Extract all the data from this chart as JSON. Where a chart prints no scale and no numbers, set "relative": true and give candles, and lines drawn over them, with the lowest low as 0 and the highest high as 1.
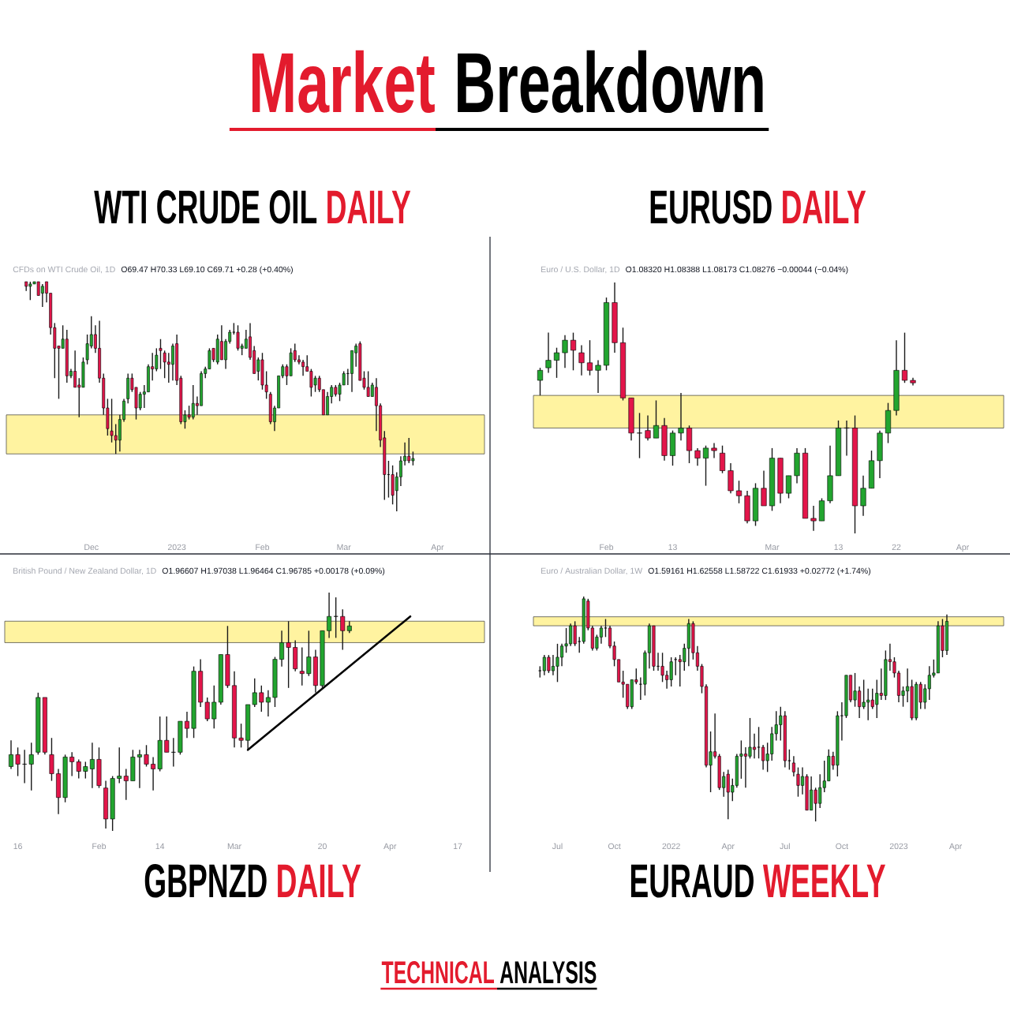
{
  "chart_data": [
    {
      "type": "other",
      "title": "Market",
      "subtitle": "Breakdown",
      "annotations": [
        "TECHNICAL",
        "ANALYSIS"
      ]
    },
    {
      "type": "candlestick",
      "title": "WTI CRUDE OIL",
      "subtitle": "DAILY",
      "annotations": [
        "CFDs on WTI Crude Oil, 1D",
        "O69.47 H70.33 L69.10 C69.71 +0.28 (+0.40%)"
      ],
      "relative": true,
      "categories": [
        null,
        null,
        null,
        null,
        null,
        null,
        null,
        null,
        null,
        null,
        null,
        null,
        null,
        null,
        null,
        null,
        "Dec",
        null,
        null,
        null,
        null,
        null,
        null,
        null,
        null,
        null,
        null,
        null,
        null,
        null,
        null,
        null,
        null,
        null,
        null,
        null,
        null,
        "2023",
        null,
        null,
        null,
        null,
        null,
        null,
        null,
        null,
        null,
        null,
        null,
        null,
        null,
        null,
        null,
        null,
        null,
        null,
        null,
        null,
        "Feb",
        null,
        null,
        null,
        null,
        null,
        null,
        null,
        null,
        null,
        null,
        null,
        null,
        null,
        null,
        null,
        null,
        null,
        null,
        null,
        "Mar",
        null,
        null,
        null,
        null,
        null,
        null,
        null,
        null,
        null,
        null,
        null,
        null,
        null,
        null,
        null,
        null,
        null,
        null,
        null,
        null,
        null,
        null,
        "Apr"
      ],
      "ohlc": [
        [
          1.0,
          1.0,
          0.96,
          0.98
        ],
        [
          0.98,
          1.0,
          0.92,
          0.99
        ],
        [
          0.99,
          1.0,
          0.99,
          1.0
        ],
        [
          1.0,
          1.0,
          0.94,
          0.94
        ],
        [
          0.95,
          0.99,
          0.89,
          0.98
        ],
        [
          1.0,
          1.0,
          0.91,
          0.95
        ],
        [
          0.95,
          0.95,
          0.77,
          0.8
        ],
        [
          0.8,
          0.82,
          0.58,
          0.71
        ],
        [
          0.72,
          0.72,
          0.49,
          0.71
        ],
        [
          0.71,
          0.81,
          0.71,
          0.75
        ],
        [
          0.75,
          0.79,
          0.56,
          0.59
        ],
        [
          0.59,
          0.62,
          0.58,
          0.61
        ],
        [
          0.61,
          0.7,
          0.54,
          0.54
        ],
        [
          0.55,
          0.58,
          0.41,
          0.54
        ],
        [
          0.54,
          0.67,
          0.54,
          0.65
        ],
        [
          0.66,
          0.77,
          0.64,
          0.73
        ],
        [
          0.72,
          0.85,
          0.71,
          0.77
        ],
        [
          0.77,
          0.81,
          0.69,
          0.71
        ],
        [
          0.71,
          0.83,
          0.56,
          0.58
        ],
        [
          0.58,
          0.6,
          0.42,
          0.45
        ],
        [
          0.45,
          0.49,
          0.33,
          0.36
        ],
        [
          0.35,
          0.49,
          0.3,
          0.33
        ],
        [
          0.33,
          0.38,
          0.25,
          0.31
        ],
        [
          0.31,
          0.42,
          0.26,
          0.4
        ],
        [
          0.4,
          0.49,
          0.39,
          0.48
        ],
        [
          0.49,
          0.6,
          0.47,
          0.58
        ],
        [
          0.58,
          0.6,
          0.52,
          0.53
        ],
        [
          0.54,
          0.54,
          0.4,
          0.45
        ],
        [
          0.45,
          0.52,
          0.44,
          0.51
        ],
        [
          0.51,
          0.55,
          0.45,
          0.52
        ],
        [
          0.52,
          0.64,
          0.52,
          0.63
        ],
        [
          0.63,
          0.69,
          0.57,
          0.62
        ],
        [
          0.62,
          0.71,
          0.61,
          0.68
        ],
        [
          0.71,
          0.75,
          0.62,
          0.7
        ],
        [
          0.69,
          0.7,
          0.58,
          0.65
        ],
        [
          0.65,
          0.69,
          0.56,
          0.64
        ],
        [
          0.64,
          0.73,
          0.57,
          0.72
        ],
        [
          0.73,
          0.77,
          0.55,
          0.57
        ],
        [
          0.58,
          0.59,
          0.38,
          0.39
        ],
        [
          0.39,
          0.44,
          0.36,
          0.42
        ],
        [
          0.42,
          0.46,
          0.4,
          0.41
        ],
        [
          0.41,
          0.55,
          0.4,
          0.47
        ],
        [
          0.47,
          0.5,
          0.42,
          0.46
        ],
        [
          0.46,
          0.61,
          0.46,
          0.6
        ],
        [
          0.6,
          0.63,
          0.58,
          0.62
        ],
        [
          0.62,
          0.71,
          0.62,
          0.7
        ],
        [
          0.71,
          0.71,
          0.65,
          0.66
        ],
        [
          0.65,
          0.77,
          0.64,
          0.75
        ],
        [
          0.74,
          0.81,
          0.66,
          0.66
        ],
        [
          0.66,
          0.75,
          0.62,
          0.74
        ],
        [
          0.74,
          0.79,
          0.73,
          0.78
        ],
        [
          0.78,
          0.82,
          0.77,
          0.78
        ],
        [
          0.78,
          0.81,
          0.7,
          0.71
        ],
        [
          0.71,
          0.73,
          0.68,
          0.72
        ],
        [
          0.71,
          0.79,
          0.71,
          0.75
        ],
        [
          0.76,
          0.82,
          0.66,
          0.67
        ],
        [
          0.7,
          0.72,
          0.6,
          0.6
        ],
        [
          0.61,
          0.67,
          0.57,
          0.66
        ],
        [
          0.66,
          0.69,
          0.53,
          0.55
        ],
        [
          0.55,
          0.61,
          0.49,
          0.52
        ],
        [
          0.51,
          0.52,
          0.38,
          0.39
        ],
        [
          0.39,
          0.46,
          0.35,
          0.45
        ],
        [
          0.45,
          0.59,
          0.45,
          0.59
        ],
        [
          0.59,
          0.64,
          0.58,
          0.63
        ],
        [
          0.63,
          0.64,
          0.55,
          0.59
        ],
        [
          0.59,
          0.71,
          0.59,
          0.69
        ],
        [
          0.7,
          0.73,
          0.65,
          0.66
        ],
        [
          0.66,
          0.68,
          0.64,
          0.65
        ],
        [
          0.65,
          0.66,
          0.59,
          0.63
        ],
        [
          0.63,
          0.68,
          0.61,
          0.61
        ],
        [
          0.61,
          0.62,
          0.5,
          0.54
        ],
        [
          0.55,
          0.59,
          0.52,
          0.58
        ],
        [
          0.58,
          0.59,
          0.52,
          0.53
        ],
        [
          0.53,
          0.53,
          0.42,
          0.42
        ],
        [
          0.42,
          0.52,
          0.42,
          0.5
        ],
        [
          0.5,
          0.55,
          0.47,
          0.54
        ],
        [
          0.54,
          0.55,
          0.5,
          0.51
        ],
        [
          0.51,
          0.56,
          0.48,
          0.55
        ],
        [
          0.55,
          0.61,
          0.55,
          0.6
        ],
        [
          0.6,
          0.62,
          0.55,
          0.6
        ],
        [
          0.6,
          0.7,
          0.52,
          0.7
        ],
        [
          0.69,
          0.73,
          0.63,
          0.72
        ],
        [
          0.73,
          0.74,
          0.57,
          0.57
        ],
        [
          0.58,
          0.61,
          0.53,
          0.54
        ],
        [
          0.54,
          0.61,
          0.5,
          0.5
        ],
        [
          0.5,
          0.56,
          0.5,
          0.55
        ],
        [
          0.54,
          0.58,
          0.35,
          0.46
        ],
        [
          0.46,
          0.47,
          0.28,
          0.31
        ],
        [
          0.32,
          0.35,
          0.05,
          0.16
        ],
        [
          0.16,
          0.22,
          0.06,
          0.16
        ],
        [
          0.16,
          0.2,
          0.03,
          0.07
        ],
        [
          0.09,
          0.17,
          0.0,
          0.15
        ],
        [
          0.15,
          0.24,
          0.11,
          0.22
        ],
        [
          0.22,
          0.3,
          0.2,
          0.24
        ],
        [
          0.24,
          0.32,
          0.21,
          0.22
        ],
        [
          0.22,
          0.26,
          0.2,
          0.23
        ],
        null,
        null,
        null,
        null,
        null,
        null
      ],
      "colors": [
        "#e3154a",
        "#22a52f",
        "#22a52f",
        "#e3154a",
        "#22a52f",
        "#e3154a",
        "#e3154a",
        "#e3154a",
        "#e3154a",
        "#22a52f",
        "#e3154a",
        "#22a52f",
        "#e3154a",
        "#e3154a",
        "#22a52f",
        "#22a52f",
        "#22a52f",
        "#e3154a",
        "#e3154a",
        "#e3154a",
        "#e3154a",
        "#e3154a",
        "#e3154a",
        "#22a52f",
        "#22a52f",
        "#22a52f",
        "#e3154a",
        "#e3154a",
        "#22a52f",
        "#22a52f",
        "#22a52f",
        "#e3154a",
        "#22a52f",
        "#e3154a",
        "#e3154a",
        "#e3154a",
        "#22a52f",
        "#e3154a",
        "#e3154a",
        "#22a52f",
        "#e3154a",
        "#22a52f",
        "#e3154a",
        "#22a52f",
        "#22a52f",
        "#22a52f",
        "#e3154a",
        "#22a52f",
        "#e3154a",
        "#22a52f",
        "#22a52f",
        "#000000",
        "#e3154a",
        "#22a52f",
        "#22a52f",
        "#e3154a",
        "#e3154a",
        "#22a52f",
        "#e3154a",
        "#e3154a",
        "#e3154a",
        "#22a52f",
        "#22a52f",
        "#22a52f",
        "#e3154a",
        "#22a52f",
        "#e3154a",
        "#e3154a",
        "#e3154a",
        "#e3154a",
        "#e3154a",
        "#22a52f",
        "#e3154a",
        "#e3154a",
        "#22a52f",
        "#22a52f",
        "#e3154a",
        "#22a52f",
        "#22a52f",
        "#000000",
        "#22a52f",
        "#22a52f",
        "#e3154a",
        "#e3154a",
        "#e3154a",
        "#22a52f",
        "#e3154a",
        "#e3154a",
        "#e3154a",
        "#000000",
        "#e3154a",
        "#22a52f",
        "#22a52f",
        "#22a52f",
        "#e3154a",
        "#22a52f",
        null,
        null,
        null,
        null,
        null,
        null
      ],
      "bands": [
        {
          "axis": "y",
          "from": 0.25,
          "to": 0.42,
          "color": "#fff3a0"
        }
      ]
    },
    {
      "type": "candlestick",
      "title": "EURUSD",
      "subtitle": "DAILY",
      "annotations": [
        "Euro / U.S. Dollar, 1D",
        "O1.08320 H1.08388 L1.08173 C1.08276 −0.00044 (−0.04%)"
      ],
      "relative": true,
      "categories": [
        null,
        null,
        null,
        null,
        null,
        null,
        null,
        null,
        "Feb",
        null,
        null,
        null,
        null,
        null,
        null,
        null,
        "13",
        null,
        null,
        null,
        null,
        null,
        null,
        null,
        null,
        null,
        null,
        null,
        "Mar",
        null,
        null,
        null,
        null,
        null,
        null,
        null,
        "13",
        null,
        null,
        null,
        null,
        null,
        null,
        "22",
        null,
        null,
        null,
        null,
        null,
        null,
        null,
        "Apr"
      ],
      "ohlc": [
        [
          0.61,
          0.66,
          0.55,
          0.65
        ],
        [
          0.66,
          0.8,
          0.64,
          0.69
        ],
        [
          0.69,
          0.74,
          0.62,
          0.72
        ],
        [
          0.72,
          0.79,
          0.66,
          0.77
        ],
        [
          0.77,
          0.8,
          0.65,
          0.73
        ],
        [
          0.72,
          0.75,
          0.63,
          0.68
        ],
        [
          0.68,
          0.77,
          0.63,
          0.65
        ],
        [
          0.65,
          0.69,
          0.56,
          0.67
        ],
        [
          0.67,
          0.94,
          0.65,
          0.92
        ],
        [
          0.92,
          1.0,
          0.72,
          0.76
        ],
        [
          0.76,
          0.82,
          0.53,
          0.54
        ],
        [
          0.54,
          0.54,
          0.37,
          0.4
        ],
        [
          0.4,
          0.48,
          0.3,
          0.4
        ],
        [
          0.41,
          0.47,
          0.37,
          0.38
        ],
        [
          0.38,
          0.53,
          0.38,
          0.43
        ],
        [
          0.43,
          0.46,
          0.29,
          0.31
        ],
        [
          0.31,
          0.41,
          0.27,
          0.4
        ],
        [
          0.4,
          0.56,
          0.37,
          0.42
        ],
        [
          0.42,
          0.43,
          0.28,
          0.33
        ],
        [
          0.33,
          0.34,
          0.27,
          0.3
        ],
        [
          0.3,
          0.35,
          0.19,
          0.34
        ],
        [
          0.34,
          0.36,
          0.3,
          0.33
        ],
        [
          0.32,
          0.35,
          0.24,
          0.25
        ],
        [
          0.25,
          0.28,
          0.16,
          0.17
        ],
        [
          0.17,
          0.21,
          0.12,
          0.15
        ],
        [
          0.15,
          0.17,
          0.04,
          0.05
        ],
        [
          0.05,
          0.2,
          0.03,
          0.18
        ],
        [
          0.18,
          0.25,
          0.11,
          0.11
        ],
        [
          0.11,
          0.34,
          0.09,
          0.3
        ],
        [
          0.3,
          0.3,
          0.12,
          0.16
        ],
        [
          0.16,
          0.23,
          0.14,
          0.23
        ],
        [
          0.23,
          0.34,
          0.2,
          0.32
        ],
        [
          0.32,
          0.34,
          0.06,
          0.06
        ],
        [
          0.06,
          0.11,
          0.01,
          0.05
        ],
        [
          0.05,
          0.14,
          0.05,
          0.13
        ],
        [
          0.13,
          0.35,
          0.12,
          0.23
        ],
        [
          0.23,
          0.45,
          0.23,
          0.42
        ],
        [
          0.42,
          0.45,
          0.31,
          0.42
        ],
        [
          0.42,
          0.47,
          0.0,
          0.11
        ],
        [
          0.11,
          0.23,
          0.07,
          0.18
        ],
        [
          0.18,
          0.33,
          0.18,
          0.29
        ],
        [
          0.29,
          0.41,
          0.22,
          0.4
        ],
        [
          0.4,
          0.52,
          0.36,
          0.49
        ],
        [
          0.49,
          0.77,
          0.47,
          0.65
        ],
        [
          0.65,
          0.8,
          0.6,
          0.61
        ],
        [
          0.61,
          0.62,
          0.59,
          0.6
        ],
        null,
        null,
        null,
        null,
        null,
        null
      ],
      "colors": [
        "#22a52f",
        "#22a52f",
        "#22a52f",
        "#22a52f",
        "#e3154a",
        "#e3154a",
        "#e3154a",
        "#22a52f",
        "#22a52f",
        "#e3154a",
        "#e3154a",
        "#e3154a",
        "#000000",
        "#e3154a",
        "#22a52f",
        "#e3154a",
        "#22a52f",
        "#22a52f",
        "#e3154a",
        "#e3154a",
        "#22a52f",
        "#e3154a",
        "#e3154a",
        "#e3154a",
        "#e3154a",
        "#e3154a",
        "#22a52f",
        "#e3154a",
        "#22a52f",
        "#e3154a",
        "#22a52f",
        "#22a52f",
        "#e3154a",
        "#e3154a",
        "#22a52f",
        "#22a52f",
        "#22a52f",
        "#000000",
        "#e3154a",
        "#22a52f",
        "#22a52f",
        "#22a52f",
        "#22a52f",
        "#22a52f",
        "#e3154a",
        "#e3154a",
        null,
        null,
        null,
        null,
        null,
        null
      ],
      "bands": [
        {
          "axis": "y",
          "from": 0.42,
          "to": 0.55,
          "color": "#fff3a0"
        }
      ]
    },
    {
      "type": "candlestick",
      "title": "GBPNZD",
      "subtitle": "DAILY",
      "annotations": [
        "British Pound / New Zealand Dollar, 1D",
        "O1.96607 H1.97038 L1.96464 C1.96785 +0.00178 (+0.09%)"
      ],
      "relative": true,
      "categories": [
        null,
        "16",
        null,
        null,
        null,
        null,
        null,
        null,
        null,
        null,
        null,
        null,
        null,
        "Feb",
        null,
        null,
        null,
        null,
        null,
        null,
        null,
        null,
        "14",
        null,
        null,
        null,
        null,
        null,
        null,
        null,
        null,
        null,
        null,
        "Mar",
        null,
        null,
        null,
        null,
        null,
        null,
        null,
        null,
        null,
        null,
        null,
        null,
        "20",
        null,
        null,
        null,
        null,
        null,
        null,
        null,
        null,
        null,
        "Apr",
        null,
        null,
        null,
        null,
        null,
        null,
        null,
        null,
        null,
        "17"
      ],
      "ohlc": [
        [
          0.27,
          0.38,
          0.26,
          0.32
        ],
        [
          0.32,
          0.35,
          0.23,
          0.28
        ],
        [
          0.28,
          0.34,
          0.2,
          0.28
        ],
        [
          0.28,
          0.37,
          0.17,
          0.32
        ],
        [
          0.33,
          0.58,
          0.32,
          0.56
        ],
        [
          0.56,
          0.56,
          0.32,
          0.33
        ],
        [
          0.32,
          0.39,
          0.21,
          0.24
        ],
        [
          0.24,
          0.26,
          0.07,
          0.14
        ],
        [
          0.14,
          0.32,
          0.12,
          0.31
        ],
        [
          0.31,
          0.33,
          0.23,
          0.29
        ],
        [
          0.29,
          0.3,
          0.22,
          0.25
        ],
        [
          0.25,
          0.29,
          0.22,
          0.27
        ],
        [
          0.26,
          0.37,
          0.18,
          0.3
        ],
        [
          0.3,
          0.35,
          0.18,
          0.19
        ],
        [
          0.18,
          0.21,
          0.01,
          0.05
        ],
        [
          0.05,
          0.23,
          0.0,
          0.22
        ],
        [
          0.22,
          0.35,
          0.2,
          0.23
        ],
        [
          0.23,
          0.26,
          0.13,
          0.21
        ],
        [
          0.21,
          0.34,
          0.21,
          0.31
        ],
        [
          0.31,
          0.34,
          0.18,
          0.32
        ],
        [
          0.32,
          0.36,
          0.27,
          0.28
        ],
        [
          0.28,
          0.31,
          0.17,
          0.26
        ],
        [
          0.26,
          0.48,
          0.25,
          0.38
        ],
        [
          0.38,
          0.48,
          0.33,
          0.33
        ],
        [
          0.33,
          0.39,
          0.27,
          0.33
        ],
        [
          0.33,
          0.46,
          0.32,
          0.46
        ],
        [
          0.46,
          0.5,
          0.39,
          0.43
        ],
        [
          0.43,
          0.69,
          0.39,
          0.67
        ],
        [
          0.67,
          0.72,
          0.52,
          0.54
        ],
        [
          0.54,
          0.56,
          0.46,
          0.47
        ],
        [
          0.47,
          0.61,
          0.43,
          0.54
        ],
        [
          0.54,
          0.74,
          0.53,
          0.74
        ],
        [
          0.74,
          0.86,
          0.6,
          0.61
        ],
        [
          0.61,
          0.67,
          0.35,
          0.39
        ],
        [
          0.39,
          0.45,
          0.35,
          0.38
        ],
        [
          0.38,
          0.53,
          0.34,
          0.53
        ],
        [
          0.53,
          0.64,
          0.52,
          0.58
        ],
        [
          0.58,
          0.61,
          0.5,
          0.54
        ],
        [
          0.54,
          0.59,
          0.48,
          0.56
        ],
        [
          0.56,
          0.73,
          0.52,
          0.72
        ],
        [
          0.72,
          0.84,
          0.69,
          0.79
        ],
        [
          0.79,
          0.88,
          0.6,
          0.77
        ],
        [
          0.77,
          0.8,
          0.67,
          0.68
        ],
        [
          0.67,
          0.77,
          0.61,
          0.66
        ],
        [
          0.66,
          0.84,
          0.65,
          0.73
        ],
        [
          0.73,
          0.76,
          0.58,
          0.61
        ],
        [
          0.61,
          0.84,
          0.6,
          0.84
        ],
        [
          0.84,
          1.0,
          0.81,
          0.9
        ],
        [
          0.9,
          0.98,
          0.81,
          0.9
        ],
        [
          0.9,
          0.93,
          0.76,
          0.84
        ],
        [
          0.84,
          0.88,
          0.83,
          0.86
        ],
        null,
        null,
        null,
        null,
        null,
        null,
        null,
        null,
        null,
        null,
        null,
        null,
        null,
        null,
        null,
        null
      ],
      "colors": [
        "#22a52f",
        "#e3154a",
        "#000000",
        "#22a52f",
        "#22a52f",
        "#e3154a",
        "#e3154a",
        "#e3154a",
        "#22a52f",
        "#e3154a",
        "#e3154a",
        "#22a52f",
        "#22a52f",
        "#e3154a",
        "#e3154a",
        "#22a52f",
        "#22a52f",
        "#e3154a",
        "#22a52f",
        "#22a52f",
        "#e3154a",
        "#e3154a",
        "#22a52f",
        "#e3154a",
        "#000000",
        "#22a52f",
        "#e3154a",
        "#22a52f",
        "#e3154a",
        "#e3154a",
        "#22a52f",
        "#22a52f",
        "#e3154a",
        "#e3154a",
        "#e3154a",
        "#22a52f",
        "#22a52f",
        "#e3154a",
        "#22a52f",
        "#22a52f",
        "#22a52f",
        "#e3154a",
        "#e3154a",
        "#e3154a",
        "#22a52f",
        "#e3154a",
        "#22a52f",
        "#22a52f",
        "#000000",
        "#e3154a",
        "#22a52f",
        null,
        null,
        null,
        null,
        null,
        null,
        null,
        null,
        null,
        null,
        null,
        null,
        null,
        null,
        null,
        null
      ],
      "bands": [
        {
          "axis": "y",
          "from": 0.79,
          "to": 0.88,
          "color": "#fff3a0"
        }
      ],
      "series": [
        {
          "type": "line",
          "color": "#000000",
          "values": [
            null,
            null,
            null,
            null,
            null,
            null,
            null,
            null,
            null,
            null,
            null,
            null,
            null,
            null,
            null,
            null,
            null,
            null,
            null,
            null,
            null,
            null,
            null,
            null,
            null,
            null,
            null,
            null,
            null,
            null,
            null,
            null,
            null,
            null,
            null,
            0.34,
            null,
            null,
            null,
            null,
            null,
            null,
            null,
            null,
            null,
            null,
            null,
            null,
            null,
            null,
            null,
            null,
            null,
            null,
            null,
            null,
            null,
            null,
            null,
            0.9,
            null,
            null,
            null,
            null,
            null,
            null,
            null
          ]
        }
      ]
    },
    {
      "type": "candlestick",
      "title": "EURAUD",
      "subtitle": "WEEKLY",
      "annotations": [
        "Euro / Australian Dollar, 1W",
        "O1.59161 H1.62558 L1.58722 C1.61933 +0.02772 (+1.74%)"
      ],
      "relative": true,
      "categories": [
        null,
        null,
        null,
        null,
        "Jul",
        null,
        null,
        null,
        null,
        null,
        null,
        null,
        null,
        null,
        null,
        null,
        null,
        "Oct",
        null,
        null,
        null,
        null,
        null,
        null,
        null,
        null,
        null,
        null,
        null,
        null,
        "2022",
        null,
        null,
        null,
        null,
        null,
        null,
        null,
        null,
        null,
        null,
        null,
        null,
        "Apr",
        null,
        null,
        null,
        null,
        null,
        null,
        null,
        null,
        null,
        null,
        null,
        null,
        "Jul",
        null,
        null,
        null,
        null,
        null,
        null,
        null,
        null,
        null,
        null,
        null,
        null,
        "Oct",
        null,
        null,
        null,
        null,
        null,
        null,
        null,
        null,
        null,
        null,
        null,
        null,
        "2023",
        null,
        null,
        null,
        null,
        null,
        null,
        null,
        null,
        null,
        null,
        null,
        null,
        "Apr"
      ],
      "ohlc": [
        [
          0.67,
          0.69,
          0.64,
          0.67
        ],
        [
          0.67,
          0.74,
          0.65,
          0.73
        ],
        [
          0.73,
          0.74,
          0.66,
          0.67
        ],
        [
          0.67,
          0.74,
          0.65,
          0.69
        ],
        [
          0.69,
          0.79,
          0.62,
          0.73
        ],
        [
          0.73,
          0.79,
          0.69,
          0.78
        ],
        [
          0.78,
          0.86,
          0.75,
          0.79
        ],
        [
          0.79,
          0.88,
          0.78,
          0.87
        ],
        [
          0.87,
          0.89,
          0.78,
          0.79
        ],
        [
          0.8,
          0.82,
          0.75,
          0.8
        ],
        [
          0.8,
          1.0,
          0.79,
          0.99
        ],
        [
          0.98,
          0.99,
          0.85,
          0.86
        ],
        [
          0.86,
          0.87,
          0.76,
          0.77
        ],
        [
          0.77,
          0.83,
          0.76,
          0.82
        ],
        [
          0.82,
          0.87,
          0.79,
          0.86
        ],
        [
          0.86,
          0.9,
          0.82,
          0.86
        ],
        [
          0.86,
          0.87,
          0.77,
          0.78
        ],
        [
          0.78,
          0.8,
          0.69,
          0.72
        ],
        [
          0.72,
          0.72,
          0.62,
          0.62
        ],
        [
          0.62,
          0.67,
          0.55,
          0.61
        ],
        [
          0.61,
          0.61,
          0.5,
          0.51
        ],
        [
          0.51,
          0.63,
          0.5,
          0.63
        ],
        [
          0.63,
          0.68,
          0.61,
          0.62
        ],
        [
          0.61,
          0.64,
          0.54,
          0.61
        ],
        [
          0.61,
          0.76,
          0.56,
          0.75
        ],
        [
          0.75,
          0.88,
          0.68,
          0.87
        ],
        [
          0.87,
          0.87,
          0.67,
          0.69
        ],
        [
          0.69,
          0.75,
          0.67,
          0.69
        ],
        [
          0.69,
          0.75,
          0.62,
          0.65
        ],
        [
          0.65,
          0.67,
          0.59,
          0.63
        ],
        [
          0.63,
          0.73,
          0.6,
          0.71
        ],
        [
          0.72,
          0.73,
          0.65,
          0.72
        ],
        [
          0.72,
          0.74,
          0.6,
          0.71
        ],
        [
          0.71,
          0.79,
          0.67,
          0.77
        ],
        [
          0.77,
          0.9,
          0.69,
          0.88
        ],
        [
          0.88,
          0.89,
          0.72,
          0.75
        ],
        [
          0.75,
          0.78,
          0.67,
          0.69
        ],
        [
          0.69,
          0.7,
          0.57,
          0.6
        ],
        [
          0.6,
          0.61,
          0.24,
          0.25
        ],
        [
          0.25,
          0.4,
          0.13,
          0.31
        ],
        [
          0.31,
          0.48,
          0.28,
          0.29
        ],
        [
          0.29,
          0.3,
          0.14,
          0.15
        ],
        [
          0.15,
          0.22,
          0.11,
          0.2
        ],
        [
          0.21,
          0.23,
          0.01,
          0.13
        ],
        [
          0.13,
          0.19,
          0.09,
          0.16
        ],
        [
          0.16,
          0.3,
          0.15,
          0.29
        ],
        [
          0.29,
          0.36,
          0.19,
          0.3
        ],
        [
          0.3,
          0.33,
          0.15,
          0.29
        ],
        [
          0.29,
          0.46,
          0.28,
          0.33
        ],
        [
          0.33,
          0.39,
          0.28,
          0.32
        ],
        [
          0.33,
          0.42,
          0.28,
          0.33
        ],
        [
          0.33,
          0.34,
          0.23,
          0.27
        ],
        [
          0.27,
          0.35,
          0.22,
          0.3
        ],
        [
          0.3,
          0.42,
          0.27,
          0.39
        ],
        [
          0.39,
          0.49,
          0.36,
          0.43
        ],
        [
          0.43,
          0.51,
          0.36,
          0.47
        ],
        [
          0.47,
          0.49,
          0.24,
          0.27
        ],
        [
          0.27,
          0.32,
          0.23,
          0.27
        ],
        [
          0.26,
          0.29,
          0.2,
          0.22
        ],
        [
          0.21,
          0.24,
          0.11,
          0.16
        ],
        [
          0.16,
          0.24,
          0.12,
          0.2
        ],
        [
          0.2,
          0.21,
          0.05,
          0.05
        ],
        [
          0.05,
          0.2,
          0.05,
          0.14
        ],
        [
          0.14,
          0.15,
          0.0,
          0.08
        ],
        [
          0.08,
          0.21,
          0.06,
          0.15
        ],
        [
          0.15,
          0.27,
          0.13,
          0.18
        ],
        [
          0.18,
          0.32,
          0.18,
          0.29
        ],
        [
          0.29,
          0.31,
          0.23,
          0.25
        ],
        [
          0.25,
          0.49,
          0.2,
          0.47
        ],
        [
          0.47,
          0.53,
          0.36,
          0.47
        ],
        [
          0.47,
          0.65,
          0.46,
          0.65
        ],
        [
          0.65,
          0.65,
          0.53,
          0.54
        ],
        [
          0.54,
          0.66,
          0.51,
          0.58
        ],
        [
          0.58,
          0.6,
          0.46,
          0.51
        ],
        [
          0.51,
          0.63,
          0.5,
          0.53
        ],
        [
          0.53,
          0.59,
          0.45,
          0.54
        ],
        [
          0.54,
          0.59,
          0.5,
          0.51
        ],
        [
          0.52,
          0.63,
          0.46,
          0.57
        ],
        [
          0.57,
          0.68,
          0.54,
          0.56
        ],
        [
          0.56,
          0.76,
          0.54,
          0.72
        ],
        [
          0.72,
          0.79,
          0.67,
          0.71
        ],
        [
          0.71,
          0.73,
          0.64,
          0.66
        ],
        [
          0.66,
          0.67,
          0.53,
          0.56
        ],
        [
          0.56,
          0.6,
          0.51,
          0.58
        ],
        [
          0.58,
          0.68,
          0.53,
          0.6
        ],
        [
          0.6,
          0.63,
          0.45,
          0.46
        ],
        [
          0.46,
          0.62,
          0.45,
          0.61
        ],
        [
          0.61,
          0.62,
          0.5,
          0.53
        ],
        [
          0.53,
          0.61,
          0.5,
          0.59
        ],
        [
          0.59,
          0.69,
          0.54,
          0.65
        ],
        [
          0.65,
          0.72,
          0.64,
          0.66
        ],
        [
          0.66,
          0.89,
          0.66,
          0.87
        ],
        [
          0.87,
          0.9,
          0.73,
          0.76
        ],
        [
          0.76,
          0.92,
          0.74,
          0.89
        ],
        null,
        null
      ],
      "colors": [
        "#000000",
        "#22a52f",
        "#e3154a",
        "#22a52f",
        "#22a52f",
        "#22a52f",
        "#22a52f",
        "#22a52f",
        "#e3154a",
        "#000000",
        "#22a52f",
        "#e3154a",
        "#e3154a",
        "#22a52f",
        "#22a52f",
        "#000000",
        "#e3154a",
        "#e3154a",
        "#e3154a",
        "#e3154a",
        "#e3154a",
        "#22a52f",
        "#e3154a",
        "#000000",
        "#22a52f",
        "#22a52f",
        "#e3154a",
        "#000000",
        "#e3154a",
        "#e3154a",
        "#22a52f",
        "#000000",
        "#e3154a",
        "#22a52f",
        "#22a52f",
        "#e3154a",
        "#e3154a",
        "#e3154a",
        "#e3154a",
        "#22a52f",
        "#e3154a",
        "#e3154a",
        "#22a52f",
        "#e3154a",
        "#22a52f",
        "#22a52f",
        "#22a52f",
        "#e3154a",
        "#22a52f",
        "#e3154a",
        "#000000",
        "#e3154a",
        "#22a52f",
        "#22a52f",
        "#22a52f",
        "#22a52f",
        "#e3154a",
        "#000000",
        "#e3154a",
        "#e3154a",
        "#22a52f",
        "#e3154a",
        "#22a52f",
        "#e3154a",
        "#22a52f",
        "#22a52f",
        "#22a52f",
        "#e3154a",
        "#22a52f",
        "#000000",
        "#22a52f",
        "#e3154a",
        "#22a52f",
        "#e3154a",
        "#22a52f",
        "#22a52f",
        "#e3154a",
        "#22a52f",
        "#e3154a",
        "#22a52f",
        "#e3154a",
        "#e3154a",
        "#e3154a",
        "#22a52f",
        "#22a52f",
        "#e3154a",
        "#22a52f",
        "#e3154a",
        "#22a52f",
        "#22a52f",
        "#22a52f",
        "#22a52f",
        "#e3154a",
        "#22a52f",
        null,
        null
      ],
      "bands": [
        {
          "axis": "y",
          "from": 0.87,
          "to": 0.91,
          "color": "#fff3a0"
        }
      ]
    }
  ]
}
